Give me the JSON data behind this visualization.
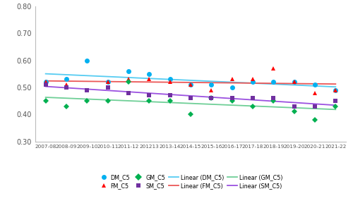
{
  "seasons": [
    "2007-08",
    "2008-09",
    "2009-10",
    "2010-11",
    "2011-12",
    "201213",
    "2013-14",
    "2014-15",
    "2015-16",
    "2016-17",
    "2017-18",
    "2018-19",
    "2019-20",
    "2020-21",
    "2021-22"
  ],
  "DM_C5": [
    0.52,
    0.53,
    0.6,
    0.52,
    0.56,
    0.55,
    0.53,
    0.51,
    0.51,
    0.5,
    0.52,
    0.52,
    0.52,
    0.51,
    0.49
  ],
  "FM_C5": [
    0.52,
    0.51,
    null,
    0.52,
    0.53,
    0.53,
    0.52,
    0.51,
    0.49,
    0.53,
    0.53,
    0.57,
    0.52,
    0.48,
    0.49
  ],
  "GM_C5": [
    0.45,
    0.43,
    0.45,
    0.45,
    0.52,
    0.45,
    0.45,
    0.4,
    0.46,
    0.45,
    0.43,
    0.45,
    0.41,
    0.38,
    0.43
  ],
  "SM_C5": [
    0.51,
    0.5,
    0.49,
    0.5,
    0.48,
    0.47,
    0.47,
    0.46,
    0.46,
    0.46,
    0.46,
    0.46,
    0.43,
    0.43,
    0.45
  ],
  "colors": {
    "DM_C5": "#00B0F0",
    "FM_C5": "#FF0000",
    "GM_C5": "#00B050",
    "SM_C5": "#7030A0"
  },
  "line_colors": {
    "DM_C5": "#56CCF2",
    "FM_C5": "#EB5757",
    "GM_C5": "#6FCF97",
    "SM_C5": "#9B51E0"
  },
  "markers": {
    "DM_C5": "o",
    "FM_C5": "^",
    "GM_C5": "D",
    "SM_C5": "s"
  },
  "marker_sizes": {
    "DM_C5": 5,
    "FM_C5": 5,
    "GM_C5": 4,
    "SM_C5": 4
  },
  "ylim": [
    0.3,
    0.8
  ],
  "yticks": [
    0.3,
    0.4,
    0.5,
    0.6,
    0.7,
    0.8
  ],
  "series_keys": [
    "DM_C5",
    "FM_C5",
    "GM_C5",
    "SM_C5"
  ]
}
